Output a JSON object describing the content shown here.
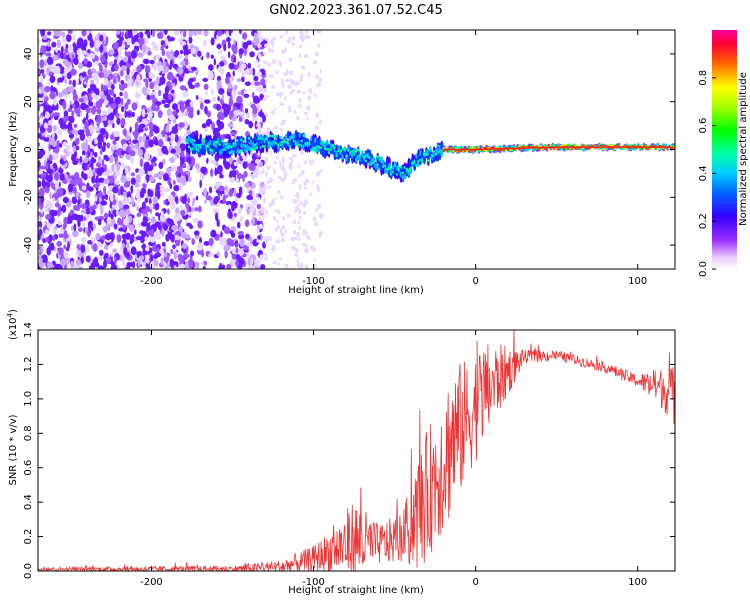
{
  "title": "GN02.2023.361.07.52.C45",
  "chart_data": [
    {
      "type": "heatmap",
      "xlabel": "Height of straight line (km)",
      "ylabel": "Frequency (Hz)",
      "xlim": [
        -270,
        123
      ],
      "ylim": [
        -50,
        50
      ],
      "xticks": [
        -200,
        -100,
        0,
        100
      ],
      "yticks": [
        -40,
        -20,
        0,
        20,
        40
      ],
      "colorbar": {
        "label": "Normalized spectral amplitude",
        "range": [
          0.0,
          1.0
        ],
        "ticks": [
          "0.0",
          "0.2",
          "0.4",
          "0.6",
          "0.8"
        ]
      },
      "ridge": [
        {
          "x": -175,
          "y": 2
        },
        {
          "x": -150,
          "y": 1
        },
        {
          "x": -130,
          "y": 3
        },
        {
          "x": -110,
          "y": 4
        },
        {
          "x": -90,
          "y": 0
        },
        {
          "x": -70,
          "y": -3
        },
        {
          "x": -55,
          "y": -7
        },
        {
          "x": -45,
          "y": -10
        },
        {
          "x": -35,
          "y": -4
        },
        {
          "x": -20,
          "y": 0
        },
        {
          "x": 0,
          "y": 0
        },
        {
          "x": 50,
          "y": 1
        },
        {
          "x": 100,
          "y": 1
        },
        {
          "x": 123,
          "y": 1
        }
      ]
    },
    {
      "type": "line",
      "xlabel": "Height of straight line (km)",
      "ylabel": "SNR (10 * v/v)",
      "yscale_label": "(x10",
      "yscale_exp": "4",
      "yscale_close": ")",
      "xlim": [
        -270,
        123
      ],
      "ylim": [
        0,
        1.4
      ],
      "xticks": [
        -200,
        -100,
        0,
        100
      ],
      "yticks": [
        "0.0",
        "0.2",
        "0.4",
        "0.6",
        "0.8",
        "1.0",
        "1.2",
        "1.4"
      ],
      "color": "#ee3333",
      "envelope": [
        {
          "x": -270,
          "base": 0.01,
          "amp": 0.01
        },
        {
          "x": -150,
          "base": 0.01,
          "amp": 0.02
        },
        {
          "x": -120,
          "base": 0.02,
          "amp": 0.04
        },
        {
          "x": -100,
          "base": 0.06,
          "amp": 0.08
        },
        {
          "x": -85,
          "base": 0.12,
          "amp": 0.15
        },
        {
          "x": -75,
          "base": 0.15,
          "amp": 0.25
        },
        {
          "x": -60,
          "base": 0.14,
          "amp": 0.12
        },
        {
          "x": -45,
          "base": 0.18,
          "amp": 0.15
        },
        {
          "x": -35,
          "base": 0.3,
          "amp": 0.35
        },
        {
          "x": -25,
          "base": 0.5,
          "amp": 0.4
        },
        {
          "x": -15,
          "base": 0.7,
          "amp": 0.45
        },
        {
          "x": -5,
          "base": 0.85,
          "amp": 0.35
        },
        {
          "x": 5,
          "base": 1.0,
          "amp": 0.3
        },
        {
          "x": 15,
          "base": 1.1,
          "amp": 0.2
        },
        {
          "x": 30,
          "base": 1.24,
          "amp": 0.04
        },
        {
          "x": 50,
          "base": 1.25,
          "amp": 0.03
        },
        {
          "x": 80,
          "base": 1.18,
          "amp": 0.03
        },
        {
          "x": 100,
          "base": 1.1,
          "amp": 0.04
        },
        {
          "x": 115,
          "base": 1.05,
          "amp": 0.12
        },
        {
          "x": 123,
          "base": 1.0,
          "amp": 0.18
        }
      ]
    }
  ]
}
